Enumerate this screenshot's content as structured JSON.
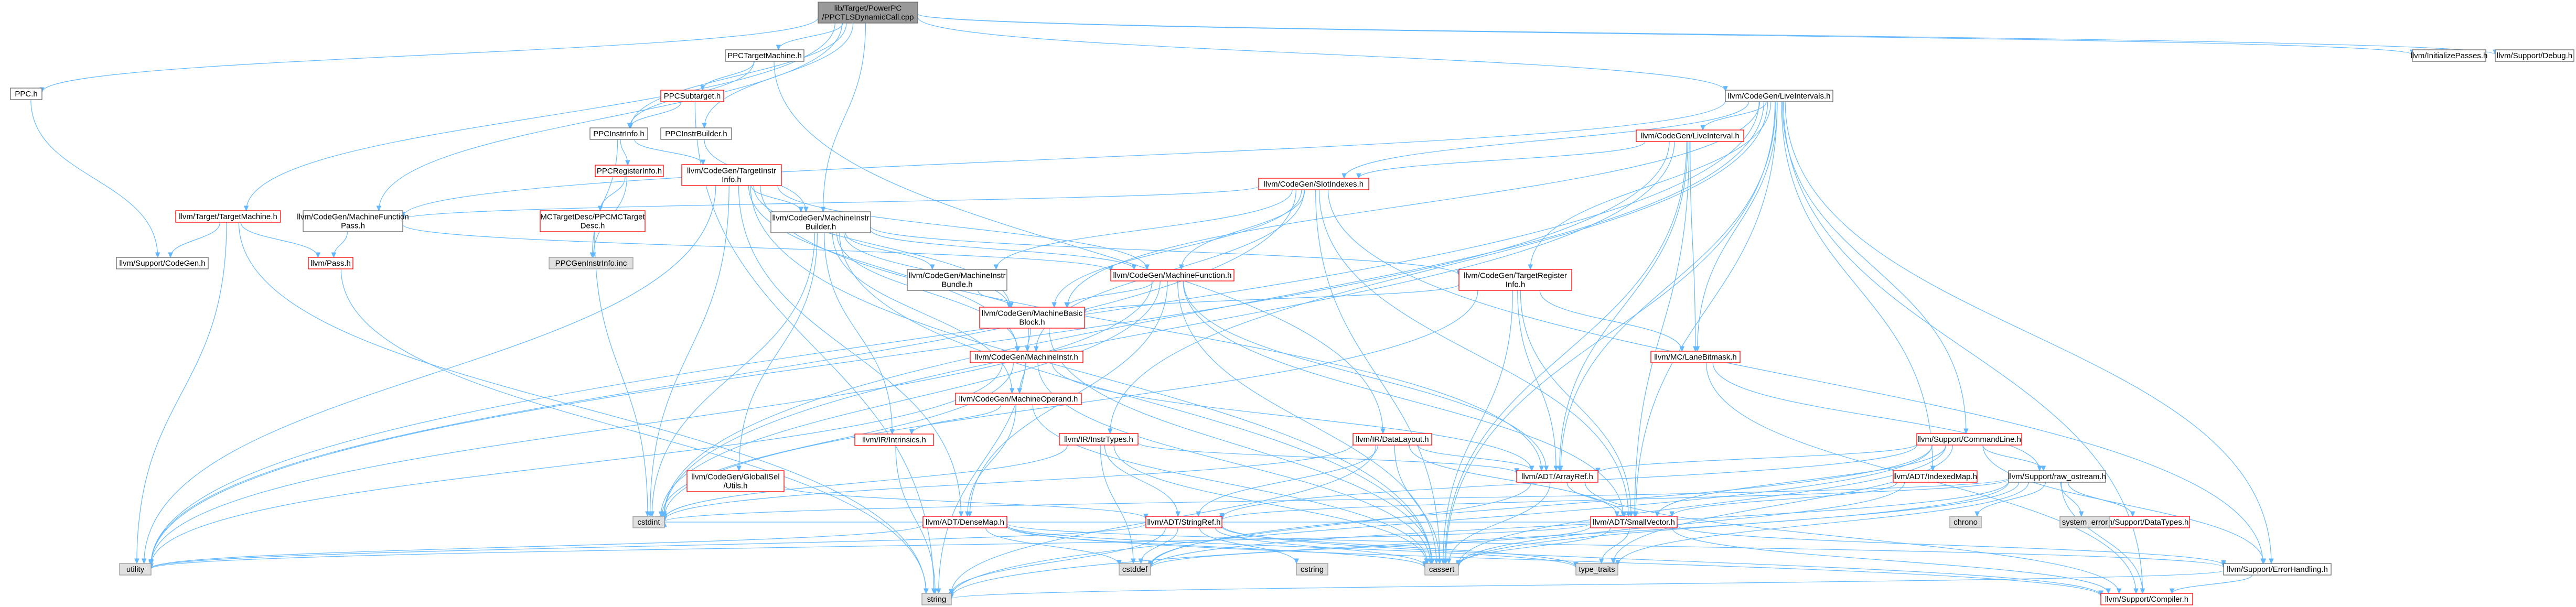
{
  "colors": {
    "edge": "#63b8ff",
    "root_fill": "#999999",
    "normal_fill": "#ffffff",
    "normal_stroke": "#666666",
    "linked_stroke": "#ff0000",
    "system_fill": "#e0e0e0",
    "system_stroke": "#999999",
    "text_dark": "#000000",
    "text_link": "#000000"
  },
  "nodes": [
    {
      "id": "root",
      "kind": "root",
      "lines": [
        "lib/Target/PowerPC",
        "/PPCTLSDynamicCall.cpp"
      ]
    },
    {
      "id": "ppc_h",
      "kind": "normal",
      "lines": [
        "PPC.h"
      ]
    },
    {
      "id": "ppctargetmachine",
      "kind": "normal",
      "lines": [
        "PPCTargetMachine.h"
      ]
    },
    {
      "id": "ppcsubtarget",
      "kind": "linked",
      "lines": [
        "PPCSubtarget.h"
      ]
    },
    {
      "id": "ppcinstrinfo",
      "kind": "normal",
      "lines": [
        "PPCInstrInfo.h"
      ]
    },
    {
      "id": "ppcinstrbuilder",
      "kind": "normal",
      "lines": [
        "PPCInstrBuilder.h"
      ]
    },
    {
      "id": "ppcreginfo",
      "kind": "linked",
      "lines": [
        "PPCRegisterInfo.h"
      ]
    },
    {
      "id": "mcppcdesc",
      "kind": "linked",
      "lines": [
        "MCTargetDesc/PPCMCTarget",
        "Desc.h"
      ]
    },
    {
      "id": "ppcgeninstrinfo",
      "kind": "system",
      "lines": [
        "PPCGenInstrInfo.inc"
      ]
    },
    {
      "id": "targetinstrinfo",
      "kind": "linked",
      "lines": [
        "llvm/CodeGen/TargetInstr",
        "Info.h"
      ]
    },
    {
      "id": "targetmachine",
      "kind": "linked",
      "lines": [
        "llvm/Target/TargetMachine.h"
      ]
    },
    {
      "id": "codegen_h",
      "kind": "normal",
      "lines": [
        "llvm/Support/CodeGen.h"
      ]
    },
    {
      "id": "pass_h",
      "kind": "linked",
      "lines": [
        "llvm/Pass.h"
      ]
    },
    {
      "id": "mfpass",
      "kind": "normal",
      "lines": [
        "llvm/CodeGen/MachineFunction",
        "Pass.h"
      ]
    },
    {
      "id": "mibuilder",
      "kind": "normal",
      "lines": [
        "llvm/CodeGen/MachineInstr",
        "Builder.h"
      ]
    },
    {
      "id": "mibundle",
      "kind": "normal",
      "lines": [
        "llvm/CodeGen/MachineInstr",
        "Bundle.h"
      ]
    },
    {
      "id": "mfunction",
      "kind": "linked",
      "lines": [
        "llvm/CodeGen/MachineFunction.h"
      ]
    },
    {
      "id": "mbb",
      "kind": "linked",
      "lines": [
        "llvm/CodeGen/MachineBasic",
        "Block.h"
      ]
    },
    {
      "id": "minstr",
      "kind": "linked",
      "lines": [
        "llvm/CodeGen/MachineInstr.h"
      ]
    },
    {
      "id": "moperand",
      "kind": "linked",
      "lines": [
        "llvm/CodeGen/MachineOperand.h"
      ]
    },
    {
      "id": "intrinsics",
      "kind": "linked",
      "lines": [
        "llvm/IR/Intrinsics.h"
      ]
    },
    {
      "id": "globalisel",
      "kind": "linked",
      "lines": [
        "llvm/CodeGen/GlobalISel",
        "/Utils.h"
      ]
    },
    {
      "id": "instrtypes",
      "kind": "linked",
      "lines": [
        "llvm/IR/InstrTypes.h"
      ]
    },
    {
      "id": "datalayout",
      "kind": "linked",
      "lines": [
        "llvm/IR/DataLayout.h"
      ]
    },
    {
      "id": "targetreginfo",
      "kind": "linked",
      "lines": [
        "llvm/CodeGen/TargetRegister",
        "Info.h"
      ]
    },
    {
      "id": "slotindexes",
      "kind": "linked",
      "lines": [
        "llvm/CodeGen/SlotIndexes.h"
      ]
    },
    {
      "id": "liveinterval",
      "kind": "linked",
      "lines": [
        "llvm/CodeGen/LiveInterval.h"
      ]
    },
    {
      "id": "liveintervals",
      "kind": "normal",
      "lines": [
        "llvm/CodeGen/LiveIntervals.h"
      ]
    },
    {
      "id": "lanebitmask",
      "kind": "linked",
      "lines": [
        "llvm/MC/LaneBitmask.h"
      ]
    },
    {
      "id": "commandline",
      "kind": "linked",
      "lines": [
        "llvm/Support/CommandLine.h"
      ]
    },
    {
      "id": "indexedmap",
      "kind": "linked",
      "lines": [
        "llvm/ADT/IndexedMap.h"
      ]
    },
    {
      "id": "raw_ostream",
      "kind": "normal",
      "lines": [
        "llvm/Support/raw_ostream.h"
      ]
    },
    {
      "id": "arrayref",
      "kind": "linked",
      "lines": [
        "llvm/ADT/ArrayRef.h"
      ]
    },
    {
      "id": "densemap",
      "kind": "linked",
      "lines": [
        "llvm/ADT/DenseMap.h"
      ]
    },
    {
      "id": "stringref",
      "kind": "linked",
      "lines": [
        "llvm/ADT/StringRef.h"
      ]
    },
    {
      "id": "smallvector",
      "kind": "linked",
      "lines": [
        "llvm/ADT/SmallVector.h"
      ]
    },
    {
      "id": "datatypes",
      "kind": "linked",
      "lines": [
        "llvm/Support/DataTypes.h"
      ]
    },
    {
      "id": "errorhandling",
      "kind": "normal",
      "lines": [
        "llvm/Support/ErrorHandling.h"
      ]
    },
    {
      "id": "compiler",
      "kind": "linked",
      "lines": [
        "llvm/Support/Compiler.h"
      ]
    },
    {
      "id": "initializepasses",
      "kind": "normal",
      "lines": [
        "llvm/InitializePasses.h"
      ]
    },
    {
      "id": "debug_h",
      "kind": "normal",
      "lines": [
        "llvm/Support/Debug.h"
      ]
    },
    {
      "id": "cstdint",
      "kind": "system",
      "lines": [
        "cstdint"
      ]
    },
    {
      "id": "utility",
      "kind": "system",
      "lines": [
        "utility"
      ]
    },
    {
      "id": "cstddef",
      "kind": "system",
      "lines": [
        "cstddef"
      ]
    },
    {
      "id": "cstring",
      "kind": "system",
      "lines": [
        "cstring"
      ]
    },
    {
      "id": "cassert",
      "kind": "system",
      "lines": [
        "cassert"
      ]
    },
    {
      "id": "type_traits",
      "kind": "system",
      "lines": [
        "type_traits"
      ]
    },
    {
      "id": "string",
      "kind": "system",
      "lines": [
        "string"
      ]
    },
    {
      "id": "chrono",
      "kind": "system",
      "lines": [
        "chrono"
      ]
    },
    {
      "id": "system_error",
      "kind": "system",
      "lines": [
        "system_error"
      ]
    }
  ],
  "edges": [
    [
      "root",
      "ppc_h"
    ],
    [
      "root",
      "ppctargetmachine"
    ],
    [
      "root",
      "ppcinstrinfo"
    ],
    [
      "root",
      "ppcinstrbuilder"
    ],
    [
      "root",
      "mfpass"
    ],
    [
      "root",
      "mibuilder"
    ],
    [
      "root",
      "liveintervals"
    ],
    [
      "root",
      "initializepasses"
    ],
    [
      "root",
      "debug_h"
    ],
    [
      "root",
      "targetmachine"
    ],
    [
      "ppc_h",
      "codegen_h"
    ],
    [
      "ppctargetmachine",
      "ppcsubtarget"
    ],
    [
      "ppctargetmachine",
      "ppcinstrinfo"
    ],
    [
      "ppctargetmachine",
      "datalayout"
    ],
    [
      "ppcsubtarget",
      "ppcinstrinfo"
    ],
    [
      "ppcsubtarget",
      "string"
    ],
    [
      "ppcinstrinfo",
      "ppcreginfo"
    ],
    [
      "ppcinstrinfo",
      "targetinstrinfo"
    ],
    [
      "ppcinstrinfo",
      "ppcgeninstrinfo"
    ],
    [
      "ppcinstrbuilder",
      "mibuilder"
    ],
    [
      "ppcreginfo",
      "mcppcdesc"
    ],
    [
      "ppcreginfo",
      "ppcgeninstrinfo"
    ],
    [
      "mcppcdesc",
      "cstdint"
    ],
    [
      "targetmachine",
      "codegen_h"
    ],
    [
      "targetmachine",
      "pass_h"
    ],
    [
      "targetmachine",
      "utility"
    ],
    [
      "targetmachine",
      "string"
    ],
    [
      "mfpass",
      "pass_h"
    ],
    [
      "mfpass",
      "mfunction"
    ],
    [
      "pass_h",
      "string"
    ],
    [
      "targetinstrinfo",
      "mibuilder"
    ],
    [
      "targetinstrinfo",
      "mfunction"
    ],
    [
      "targetinstrinfo",
      "mbb"
    ],
    [
      "targetinstrinfo",
      "minstr"
    ],
    [
      "targetinstrinfo",
      "arrayref"
    ],
    [
      "targetinstrinfo",
      "densemap"
    ],
    [
      "targetinstrinfo",
      "utility"
    ],
    [
      "targetinstrinfo",
      "cassert"
    ],
    [
      "targetinstrinfo",
      "cstdint"
    ],
    [
      "mibuilder",
      "mibundle"
    ],
    [
      "mibuilder",
      "mfunction"
    ],
    [
      "mibuilder",
      "mbb"
    ],
    [
      "mibuilder",
      "minstr"
    ],
    [
      "mibuilder",
      "moperand"
    ],
    [
      "mibuilder",
      "intrinsics"
    ],
    [
      "mibuilder",
      "globalisel"
    ],
    [
      "mibuilder",
      "targetreginfo"
    ],
    [
      "mibuilder",
      "cassert"
    ],
    [
      "mibuilder",
      "cstdint"
    ],
    [
      "mibundle",
      "mbb"
    ],
    [
      "mfunction",
      "mbb"
    ],
    [
      "mfunction",
      "arrayref"
    ],
    [
      "mfunction",
      "densemap"
    ],
    [
      "mfunction",
      "smallvector"
    ],
    [
      "mfunction",
      "cassert"
    ],
    [
      "mfunction",
      "cstdint"
    ],
    [
      "mfunction",
      "utility"
    ],
    [
      "mbb",
      "minstr"
    ],
    [
      "mbb",
      "cassert"
    ],
    [
      "mbb",
      "string"
    ],
    [
      "minstr",
      "moperand"
    ],
    [
      "minstr",
      "arrayref"
    ],
    [
      "minstr",
      "cassert"
    ],
    [
      "minstr",
      "cstdint"
    ],
    [
      "minstr",
      "utility"
    ],
    [
      "moperand",
      "intrinsics"
    ],
    [
      "moperand",
      "densemap"
    ],
    [
      "moperand",
      "cassert"
    ],
    [
      "intrinsics",
      "string"
    ],
    [
      "globalisel",
      "stringref"
    ],
    [
      "instrtypes",
      "arrayref"
    ],
    [
      "instrtypes",
      "stringref"
    ],
    [
      "instrtypes",
      "cassert"
    ],
    [
      "instrtypes",
      "cstddef"
    ],
    [
      "instrtypes",
      "cstdint"
    ],
    [
      "datalayout",
      "arrayref"
    ],
    [
      "datalayout",
      "stringref"
    ],
    [
      "datalayout",
      "smallvector"
    ],
    [
      "datalayout",
      "cassert"
    ],
    [
      "datalayout",
      "cstdint"
    ],
    [
      "datalayout",
      "string"
    ],
    [
      "targetreginfo",
      "mbb"
    ],
    [
      "targetreginfo",
      "lanebitmask"
    ],
    [
      "targetreginfo",
      "arrayref"
    ],
    [
      "targetreginfo",
      "smallvector"
    ],
    [
      "targetreginfo",
      "cassert"
    ],
    [
      "targetreginfo",
      "cstdint"
    ],
    [
      "slotindexes",
      "mfpass"
    ],
    [
      "slotindexes",
      "mfunction"
    ],
    [
      "slotindexes",
      "mbb"
    ],
    [
      "slotindexes",
      "minstr"
    ],
    [
      "slotindexes",
      "mibundle"
    ],
    [
      "slotindexes",
      "smallvector"
    ],
    [
      "slotindexes",
      "cassert"
    ],
    [
      "slotindexes",
      "utility"
    ],
    [
      "slotindexes",
      "errorhandling"
    ],
    [
      "liveinterval",
      "slotindexes"
    ],
    [
      "liveinterval",
      "lanebitmask"
    ],
    [
      "liveinterval",
      "arrayref"
    ],
    [
      "liveinterval",
      "smallvector"
    ],
    [
      "liveinterval",
      "cassert"
    ],
    [
      "liveinterval",
      "utility"
    ],
    [
      "liveinterval",
      "cstdint"
    ],
    [
      "liveintervals",
      "liveinterval"
    ],
    [
      "liveintervals",
      "slotindexes"
    ],
    [
      "liveintervals",
      "targetreginfo"
    ],
    [
      "liveintervals",
      "mfpass"
    ],
    [
      "liveintervals",
      "mbb"
    ],
    [
      "liveintervals",
      "lanebitmask"
    ],
    [
      "liveintervals",
      "arrayref"
    ],
    [
      "liveintervals",
      "indexedmap"
    ],
    [
      "liveintervals",
      "smallvector"
    ],
    [
      "liveintervals",
      "commandline"
    ],
    [
      "liveintervals",
      "errorhandling"
    ],
    [
      "liveintervals",
      "compiler"
    ],
    [
      "liveintervals",
      "cassert"
    ],
    [
      "liveintervals",
      "cstdint"
    ],
    [
      "liveintervals",
      "utility"
    ],
    [
      "liveintervals",
      "instrtypes"
    ],
    [
      "lanebitmask",
      "raw_ostream"
    ],
    [
      "lanebitmask",
      "compiler"
    ],
    [
      "commandline",
      "arrayref"
    ],
    [
      "commandline",
      "stringref"
    ],
    [
      "commandline",
      "smallvector"
    ],
    [
      "commandline",
      "raw_ostream"
    ],
    [
      "commandline",
      "errorhandling"
    ],
    [
      "commandline",
      "cassert"
    ],
    [
      "commandline",
      "cstddef"
    ],
    [
      "commandline",
      "string"
    ],
    [
      "commandline",
      "type_traits"
    ],
    [
      "indexedmap",
      "smallvector"
    ],
    [
      "indexedmap",
      "cassert"
    ],
    [
      "raw_ostream",
      "stringref"
    ],
    [
      "raw_ostream",
      "datatypes"
    ],
    [
      "raw_ostream",
      "chrono"
    ],
    [
      "raw_ostream",
      "system_error"
    ],
    [
      "raw_ostream",
      "cassert"
    ],
    [
      "raw_ostream",
      "cstddef"
    ],
    [
      "raw_ostream",
      "cstdint"
    ],
    [
      "raw_ostream",
      "string"
    ],
    [
      "raw_ostream",
      "type_traits"
    ],
    [
      "raw_ostream",
      "compiler"
    ],
    [
      "arrayref",
      "smallvector"
    ],
    [
      "arrayref",
      "compiler"
    ],
    [
      "arrayref",
      "cassert"
    ],
    [
      "arrayref",
      "cstddef"
    ],
    [
      "densemap",
      "compiler"
    ],
    [
      "densemap",
      "cassert"
    ],
    [
      "densemap",
      "cstddef"
    ],
    [
      "densemap",
      "utility"
    ],
    [
      "densemap",
      "type_traits"
    ],
    [
      "densemap",
      "errorhandling"
    ],
    [
      "stringref",
      "compiler"
    ],
    [
      "stringref",
      "cassert"
    ],
    [
      "stringref",
      "cstddef"
    ],
    [
      "stringref",
      "cstring"
    ],
    [
      "stringref",
      "string"
    ],
    [
      "stringref",
      "utility"
    ],
    [
      "stringref",
      "type_traits"
    ],
    [
      "smallvector",
      "compiler"
    ],
    [
      "smallvector",
      "cassert"
    ],
    [
      "smallvector",
      "cstddef"
    ],
    [
      "smallvector",
      "cstdint"
    ],
    [
      "smallvector",
      "utility"
    ],
    [
      "smallvector",
      "type_traits"
    ],
    [
      "smallvector",
      "errorhandling"
    ],
    [
      "errorhandling",
      "compiler"
    ],
    [
      "errorhandling",
      "string"
    ]
  ]
}
